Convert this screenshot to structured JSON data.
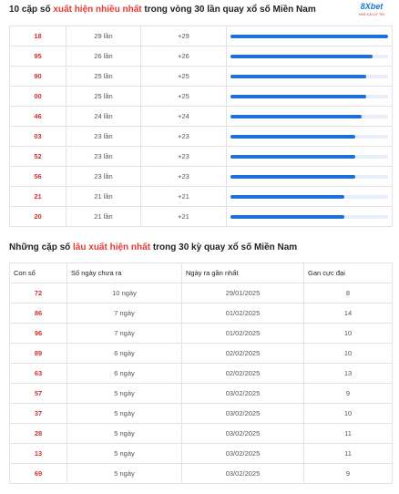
{
  "section1": {
    "title_pre": "10 cặp số ",
    "title_hl": "xuất hiện nhiều nhất",
    "title_post": " trong vòng 30 lần quay xổ số Miền Nam",
    "rows": [
      {
        "num": "18",
        "times": "29 lần",
        "delta": "+29",
        "fill": 1.0
      },
      {
        "num": "95",
        "times": "26 lần",
        "delta": "+26",
        "fill": 0.9
      },
      {
        "num": "90",
        "times": "25 lần",
        "delta": "+25",
        "fill": 0.86
      },
      {
        "num": "00",
        "times": "25 lần",
        "delta": "+25",
        "fill": 0.86
      },
      {
        "num": "46",
        "times": "24 lần",
        "delta": "+24",
        "fill": 0.83
      },
      {
        "num": "03",
        "times": "23 lần",
        "delta": "+23",
        "fill": 0.79
      },
      {
        "num": "52",
        "times": "23 lần",
        "delta": "+23",
        "fill": 0.79
      },
      {
        "num": "56",
        "times": "23 lần",
        "delta": "+23",
        "fill": 0.79
      },
      {
        "num": "21",
        "times": "21 lần",
        "delta": "+21",
        "fill": 0.72
      },
      {
        "num": "20",
        "times": "21 lần",
        "delta": "+21",
        "fill": 0.72
      }
    ]
  },
  "logo": {
    "brand": "8Xbet",
    "tagline": "NHÀ CÁI UY TÍN"
  },
  "section2": {
    "title_pre": "Những cặp số ",
    "title_hl": "lâu xuất hiện nhất",
    "title_post": " trong 30 kỳ quay xổ số Miền Nam",
    "headers": [
      "Con số",
      "Số ngày chưa ra",
      "Ngày ra gần nhất",
      "Gan cực đại"
    ],
    "rows": [
      {
        "num": "72",
        "days": "10 ngày",
        "last": "29/01/2025",
        "max": "8"
      },
      {
        "num": "86",
        "days": "7 ngày",
        "last": "01/02/2025",
        "max": "14"
      },
      {
        "num": "96",
        "days": "7 ngày",
        "last": "01/02/2025",
        "max": "10"
      },
      {
        "num": "89",
        "days": "6 ngày",
        "last": "02/02/2025",
        "max": "10"
      },
      {
        "num": "63",
        "days": "6 ngày",
        "last": "02/02/2025",
        "max": "13"
      },
      {
        "num": "57",
        "days": "5 ngày",
        "last": "03/02/2025",
        "max": "9"
      },
      {
        "num": "37",
        "days": "5 ngày",
        "last": "03/02/2025",
        "max": "10"
      },
      {
        "num": "28",
        "days": "5 ngày",
        "last": "03/02/2025",
        "max": "11"
      },
      {
        "num": "13",
        "days": "5 ngày",
        "last": "03/02/2025",
        "max": "11"
      },
      {
        "num": "69",
        "days": "5 ngày",
        "last": "03/02/2025",
        "max": "9"
      }
    ]
  }
}
